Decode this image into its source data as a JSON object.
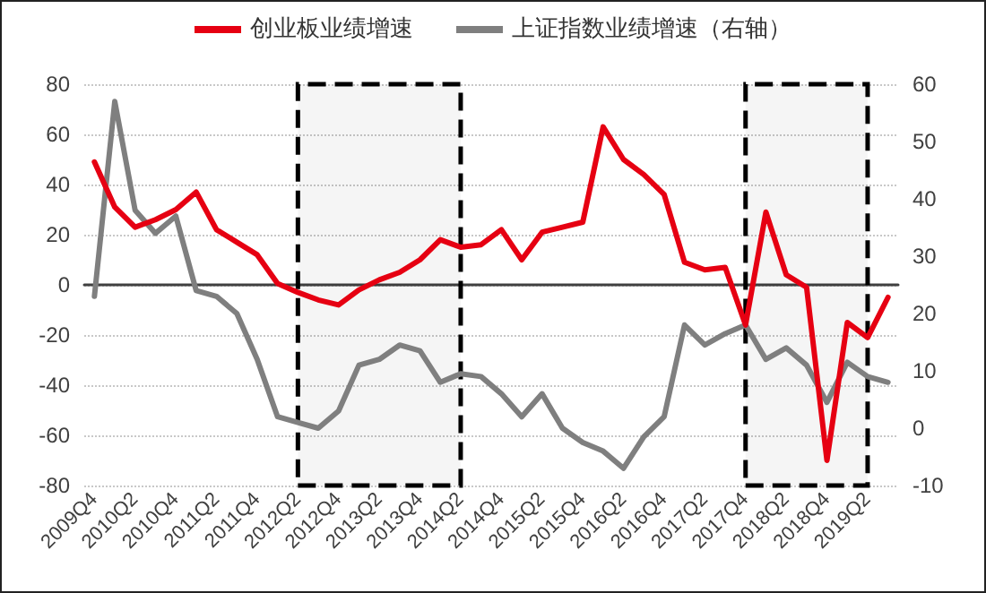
{
  "chart_data": {
    "type": "line",
    "categories": [
      "2009Q4",
      null,
      "2010Q2",
      null,
      "2010Q4",
      null,
      "2011Q2",
      null,
      "2011Q4",
      null,
      "2012Q2",
      null,
      "2012Q4",
      null,
      "2013Q2",
      null,
      "2013Q4",
      null,
      "2014Q2",
      null,
      "2014Q4",
      null,
      "2015Q2",
      null,
      "2015Q4",
      null,
      "2016Q2",
      null,
      "2016Q4",
      null,
      "2017Q2",
      null,
      "2017Q4",
      null,
      "2018Q2",
      null,
      "2018Q4",
      null,
      "2019Q2",
      null
    ],
    "series": [
      {
        "name": "创业板业绩增速",
        "color": "#e60012",
        "values": [
          49,
          31,
          23,
          26,
          30,
          37,
          22,
          17,
          12,
          0.5,
          -3,
          -6,
          -8,
          -2,
          2,
          5,
          10,
          18,
          15,
          16,
          22,
          10,
          21,
          23,
          25,
          63,
          50,
          44,
          36,
          9,
          6,
          7,
          -16,
          29,
          4,
          -1,
          -70,
          -15,
          -21,
          -5
        ]
      },
      {
        "name": "上证指数业绩增速（右轴）",
        "color": "#7f7f7f",
        "axis": "y2",
        "values": [
          23,
          57,
          38,
          34,
          37,
          24,
          23,
          20,
          12,
          2,
          1,
          0,
          3,
          11,
          12,
          14.5,
          13.5,
          8,
          9.5,
          9,
          6,
          2,
          6,
          0,
          -2.5,
          -4,
          -7,
          -1.5,
          2,
          18,
          14.5,
          16.5,
          18,
          12,
          14,
          11,
          4.5,
          11.5,
          9,
          8
        ]
      }
    ],
    "ylim": [
      -80,
      80
    ],
    "yticks": [
      -80,
      -60,
      -40,
      -20,
      0,
      20,
      40,
      60,
      80
    ],
    "y2lim": [
      -10,
      60
    ],
    "y2ticks": [
      -10,
      0,
      10,
      20,
      30,
      40,
      50,
      60
    ],
    "bands": [
      {
        "axis": "x",
        "from": "2012Q2",
        "to": "2014Q2",
        "color": "#000000"
      },
      {
        "axis": "x",
        "from": "2017Q4",
        "to": "2019Q2",
        "color": "#000000"
      }
    ],
    "grid": "y",
    "legend": "top",
    "marker": "none",
    "line_style": "solid"
  }
}
